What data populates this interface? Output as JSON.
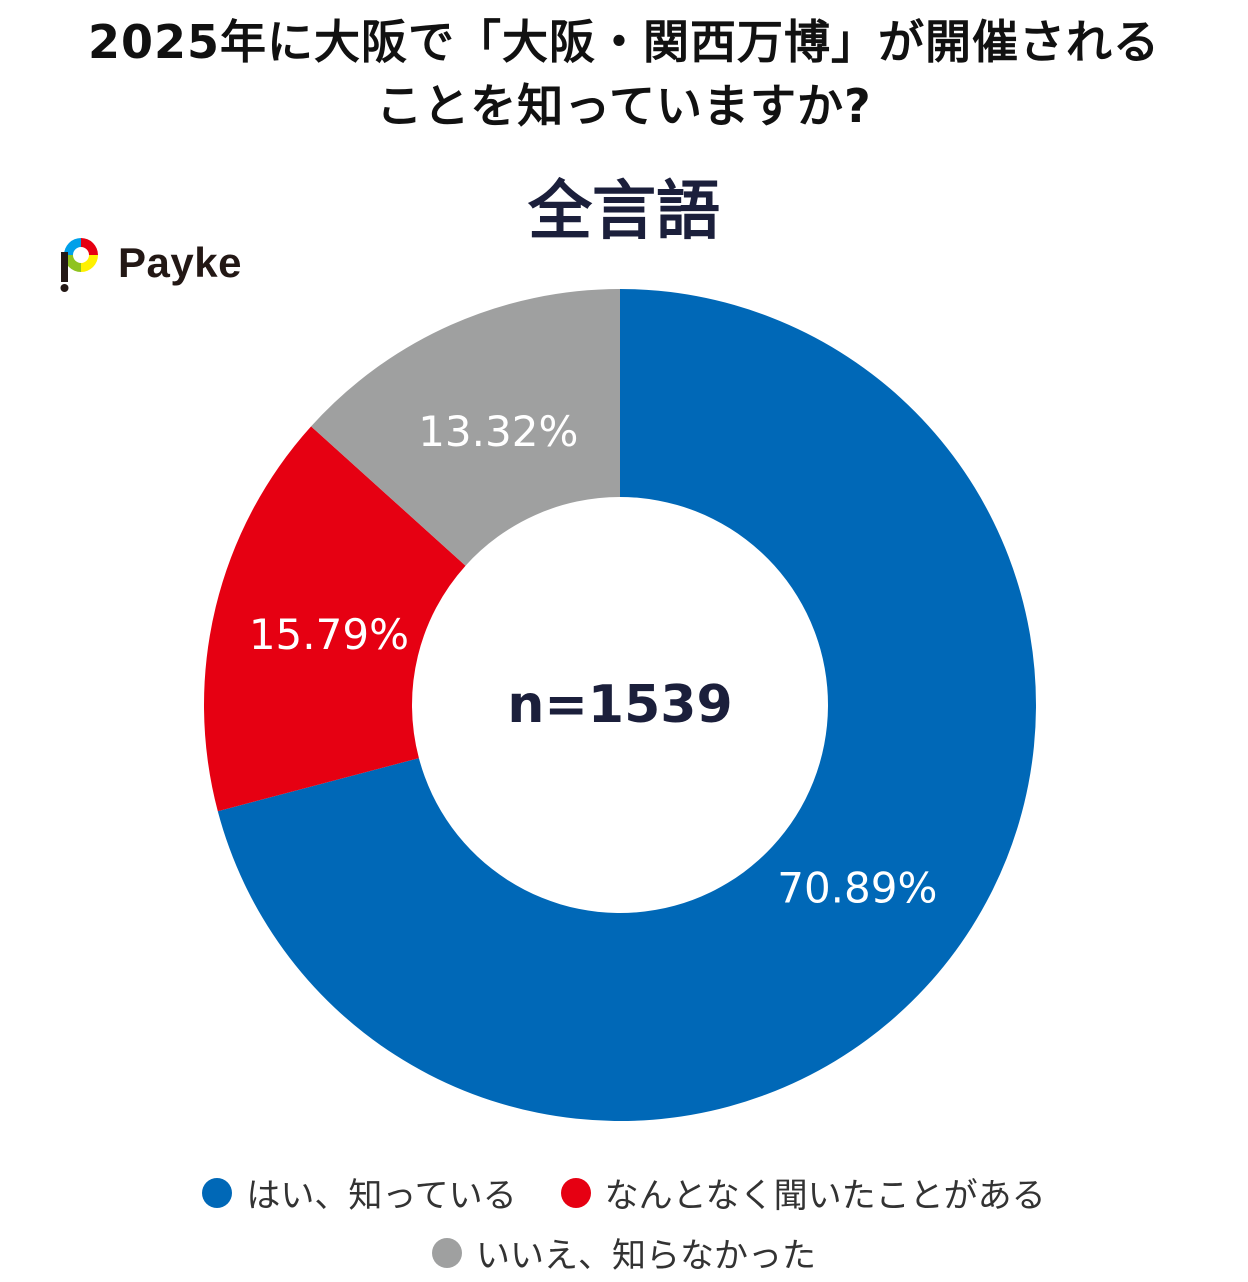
{
  "header": {
    "title_line1": "2025年に大阪で「大阪・関西万博」が開催される",
    "title_line2": "ことを知っていますか?"
  },
  "logo": {
    "text": "Payke"
  },
  "chart_data": {
    "type": "pie",
    "title": "全言語",
    "center_label": "n=1539",
    "categories": [
      "はい、知っている",
      "なんとなく聞いたことがある",
      "いいえ、知らなかった"
    ],
    "values": [
      70.89,
      15.79,
      13.32
    ],
    "value_labels": [
      "70.89%",
      "15.79%",
      "13.32%"
    ],
    "colors": [
      "#0068b7",
      "#e60012",
      "#9fa0a0"
    ],
    "legend_position": "bottom"
  }
}
